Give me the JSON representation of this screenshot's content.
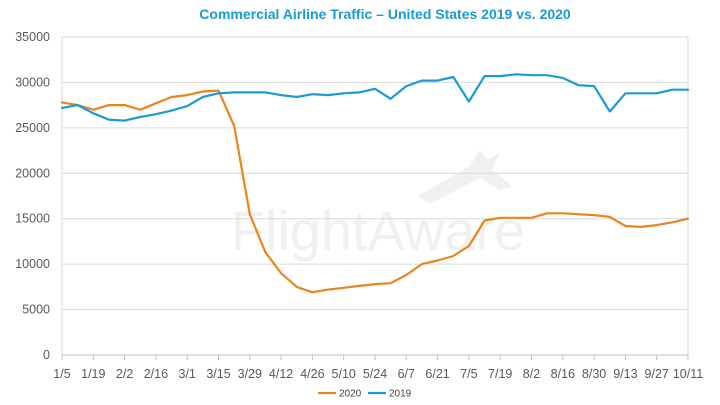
{
  "colors": {
    "title": "#1a9ad6",
    "series_2020": "#e8851e",
    "series_2019": "#1a9ad6",
    "grid": "#d9d9d9",
    "axis": "#bfbfbf"
  },
  "watermark": "FlightAware",
  "chart_data": {
    "type": "line",
    "title": "Commercial Airline Traffic – United States 2019 vs. 2020",
    "xlabel": "",
    "ylabel": "",
    "ylim": [
      0,
      35000
    ],
    "yticks": [
      "0",
      "5000",
      "10000",
      "15000",
      "20000",
      "25000",
      "30000",
      "35000"
    ],
    "grid": "horizontal",
    "legend_position": "bottom-center",
    "x": [
      "1/5",
      "1/12",
      "1/19",
      "1/26",
      "2/2",
      "2/9",
      "2/16",
      "2/23",
      "3/1",
      "3/8",
      "3/15",
      "3/22",
      "3/29",
      "4/5",
      "4/12",
      "4/19",
      "4/26",
      "5/3",
      "5/10",
      "5/17",
      "5/24",
      "5/31",
      "6/7",
      "6/14",
      "6/21",
      "6/28",
      "7/5",
      "7/12",
      "7/19",
      "7/26",
      "8/2",
      "8/9",
      "8/16",
      "8/23",
      "8/30",
      "9/6",
      "9/13",
      "9/20",
      "9/27",
      "10/4",
      "10/11"
    ],
    "xtick_labels": [
      "1/5",
      "1/19",
      "2/2",
      "2/16",
      "3/1",
      "3/15",
      "3/29",
      "4/12",
      "4/26",
      "5/10",
      "5/24",
      "6/7",
      "6/21",
      "7/5",
      "7/19",
      "8/2",
      "8/16",
      "8/30",
      "9/13",
      "9/27",
      "10/11"
    ],
    "series": [
      {
        "name": "2020",
        "values": [
          27800,
          27500,
          27000,
          27500,
          27500,
          27000,
          27700,
          28400,
          28600,
          29000,
          29100,
          25200,
          15500,
          11300,
          9000,
          7500,
          6900,
          7200,
          7400,
          7600,
          7800,
          7900,
          8800,
          10000,
          10400,
          10900,
          12000,
          14800,
          15100,
          15100,
          15100,
          15600,
          15600,
          15500,
          15400,
          15200,
          14200,
          14100,
          14300,
          14600,
          15000
        ]
      },
      {
        "name": "2019",
        "values": [
          27200,
          27500,
          26600,
          25900,
          25800,
          26200,
          26500,
          26900,
          27400,
          28400,
          28800,
          28900,
          28900,
          28900,
          28600,
          28400,
          28700,
          28600,
          28800,
          28900,
          29300,
          28200,
          29600,
          30200,
          30200,
          30600,
          27900,
          30700,
          30700,
          30900,
          30800,
          30800,
          30500,
          29700,
          29600,
          26800,
          28800,
          28800,
          28800,
          29200,
          29200
        ]
      }
    ]
  }
}
